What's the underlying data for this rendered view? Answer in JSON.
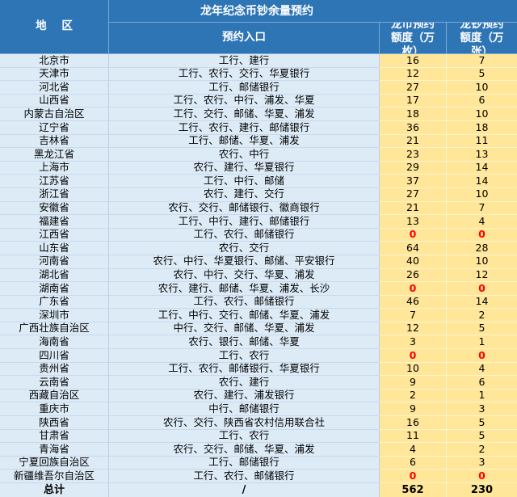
{
  "table": {
    "header": {
      "region": "地 区",
      "title": "龙年纪念币钞余量预约",
      "entry": "预约入口",
      "coin_quota": "龙币预约额度（万枚）",
      "note_quota": "龙钞预约额度（万张）"
    },
    "rows": [
      {
        "region": "北京市",
        "entry": "工行、建行",
        "coin": 16,
        "note": 7
      },
      {
        "region": "天津市",
        "entry": "工行、农行、交行、华夏银行",
        "coin": 12,
        "note": 5
      },
      {
        "region": "河北省",
        "entry": "工行、邮储银行",
        "coin": 27,
        "note": 10
      },
      {
        "region": "山西省",
        "entry": "工行、农行、中行、浦发、华夏",
        "coin": 17,
        "note": 6
      },
      {
        "region": "内蒙古自治区",
        "entry": "工行、交行、邮储、华夏、浦发",
        "coin": 18,
        "note": 10
      },
      {
        "region": "辽宁省",
        "entry": "工行、农行、建行、邮储银行",
        "coin": 36,
        "note": 18
      },
      {
        "region": "吉林省",
        "entry": "工行、邮储、华夏、浦发",
        "coin": 21,
        "note": 11
      },
      {
        "region": "黑龙江省",
        "entry": "农行、中行",
        "coin": 23,
        "note": 13
      },
      {
        "region": "上海市",
        "entry": "农行、建行、华夏银行",
        "coin": 29,
        "note": 14
      },
      {
        "region": "江苏省",
        "entry": "工行、中行、邮储",
        "coin": 37,
        "note": 14
      },
      {
        "region": "浙江省",
        "entry": "农行、建行、交行",
        "coin": 27,
        "note": 10
      },
      {
        "region": "安徽省",
        "entry": "农行、交行、邮储银行、徽商银行",
        "coin": 21,
        "note": 7
      },
      {
        "region": "福建省",
        "entry": "工行、中行、建行、邮储银行",
        "coin": 13,
        "note": 4
      },
      {
        "region": "江西省",
        "entry": "工行、农行、邮储银行",
        "coin": 0,
        "note": 0
      },
      {
        "region": "山东省",
        "entry": "农行、交行",
        "coin": 64,
        "note": 28
      },
      {
        "region": "河南省",
        "entry": "农行、中行、华夏银行、邮储、平安银行",
        "coin": 40,
        "note": 10
      },
      {
        "region": "湖北省",
        "entry": "农行、中行、交行、华夏、浦发",
        "coin": 26,
        "note": 12
      },
      {
        "region": "湖南省",
        "entry": "农行、建行、邮储、华夏、浦发、长沙",
        "coin": 0,
        "note": 0
      },
      {
        "region": "广东省",
        "entry": "工行、农行、邮储银行",
        "coin": 46,
        "note": 14
      },
      {
        "region": "深圳市",
        "entry": "工行、中行、交行、邮储、华夏、浦发",
        "coin": 7,
        "note": 2
      },
      {
        "region": "广西壮族自治区",
        "entry": "中行、交行、邮储、华夏、浦发",
        "coin": 12,
        "note": 5
      },
      {
        "region": "海南省",
        "entry": "农行、银行、邮储、华夏",
        "coin": 3,
        "note": 1
      },
      {
        "region": "四川省",
        "entry": "工行、农行",
        "coin": 0,
        "note": 0
      },
      {
        "region": "贵州省",
        "entry": "工行、农行、邮储银行、华夏银行",
        "coin": 10,
        "note": 4
      },
      {
        "region": "云南省",
        "entry": "农行、建行",
        "coin": 9,
        "note": 6
      },
      {
        "region": "西藏自治区",
        "entry": "农行、建行、浦发银行",
        "coin": 2,
        "note": 1
      },
      {
        "region": "重庆市",
        "entry": "中行、邮储银行",
        "coin": 9,
        "note": 3
      },
      {
        "region": "陕西省",
        "entry": "农行、交行、陕西省农村信用联合社",
        "coin": 16,
        "note": 5
      },
      {
        "region": "甘肃省",
        "entry": "工行、农行",
        "coin": 11,
        "note": 5
      },
      {
        "region": "青海省",
        "entry": "农行、交行、邮储、华夏、浦发",
        "coin": 4,
        "note": 2
      },
      {
        "region": "宁夏回族自治区",
        "entry": "工行、邮储银行",
        "coin": 6,
        "note": 3
      },
      {
        "region": "新疆维吾尔自治区",
        "entry": "工行、农行、邮储银行",
        "coin": 0,
        "note": 0
      }
    ],
    "total": {
      "region": "总计",
      "entry": "/",
      "coin": 562,
      "note": 230
    }
  },
  "colors": {
    "header_bg": "#2E75B6",
    "region_bg": "#DDEBF7",
    "quota_bg": "#FFE699",
    "zero_highlight": "#FF0000"
  }
}
